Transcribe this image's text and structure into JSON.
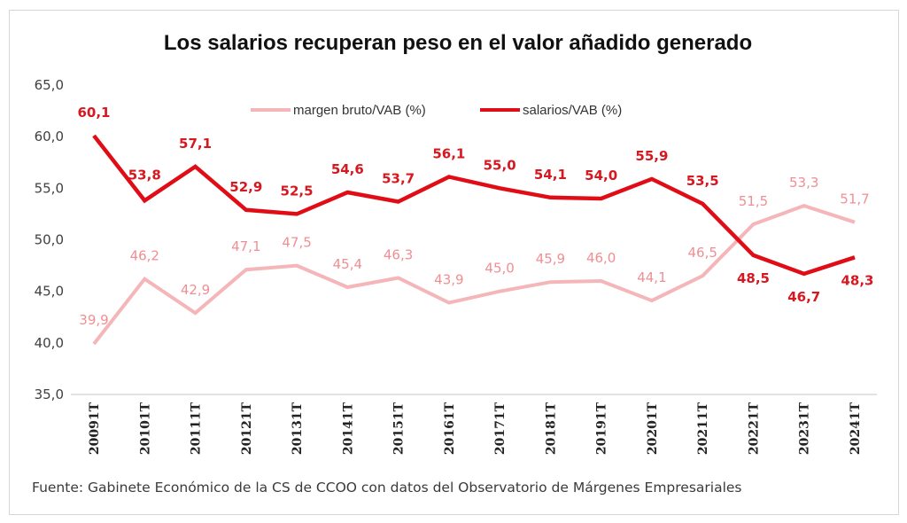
{
  "chart_data": {
    "type": "line",
    "title": "Los salarios recuperan peso en el valor añadido generado",
    "xlabel": "",
    "ylabel": "",
    "ylim": [
      35.0,
      65.0
    ],
    "yticks": [
      "35,0",
      "40,0",
      "45,0",
      "50,0",
      "55,0",
      "60,0",
      "65,0"
    ],
    "ytick_values": [
      35,
      40,
      45,
      50,
      55,
      60,
      65
    ],
    "grid": false,
    "legend_position": "top-center",
    "categories": [
      "20091T",
      "20101T",
      "20111T",
      "20121T",
      "20131T",
      "20141T",
      "20151T",
      "20161T",
      "20171T",
      "20181T",
      "20191T",
      "20201T",
      "20211T",
      "20221T",
      "20231T",
      "20241T"
    ],
    "series": [
      {
        "name": "margen bruto/VAB (%)",
        "color": "#f4b6b8",
        "label_color": "#ef8f93",
        "values": [
          39.9,
          46.2,
          42.9,
          47.1,
          47.5,
          45.4,
          46.3,
          43.9,
          45.0,
          45.9,
          46.0,
          44.1,
          46.5,
          51.5,
          53.3,
          51.7
        ],
        "labels": [
          "39,9",
          "46,2",
          "42,9",
          "47,1",
          "47,5",
          "45,4",
          "46,3",
          "43,9",
          "45,0",
          "45,9",
          "46,0",
          "44,1",
          "46,5",
          "51,5",
          "53,3",
          "51,7"
        ]
      },
      {
        "name": "salarios/VAB (%)",
        "color": "#e00d16",
        "label_color": "#d61820",
        "values": [
          60.1,
          53.8,
          57.1,
          52.9,
          52.5,
          54.6,
          53.7,
          56.1,
          55.0,
          54.1,
          54.0,
          55.9,
          53.5,
          48.5,
          46.7,
          48.3
        ],
        "labels": [
          "60,1",
          "53,8",
          "57,1",
          "52,9",
          "52,5",
          "54,6",
          "53,7",
          "56,1",
          "55,0",
          "54,1",
          "54,0",
          "55,9",
          "53,5",
          "48,5",
          "46,7",
          "48,3"
        ]
      }
    ],
    "source": "Fuente: Gabinete Económico de la CS de CCOO con datos del Observatorio de Márgenes Empresariales"
  }
}
